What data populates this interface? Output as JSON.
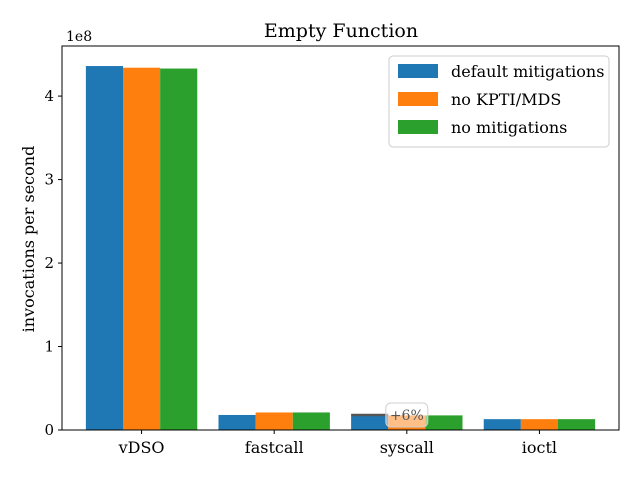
{
  "chart_data": {
    "type": "bar",
    "title": "Empty Function",
    "xlabel": "",
    "ylabel": "invocations per second",
    "y_offset_label": "1e8",
    "y_scale": 100000000,
    "ylim": [
      0,
      460000000
    ],
    "yticks": [
      0,
      100000000,
      200000000,
      300000000,
      400000000
    ],
    "ytick_labels": [
      "0",
      "1",
      "2",
      "3",
      "4"
    ],
    "categories": [
      "vDSO",
      "fastcall",
      "syscall",
      "ioctl"
    ],
    "series": [
      {
        "name": "default mitigations",
        "color": "#1f77b4",
        "values": [
          436000000,
          18000000,
          17000000,
          13000000
        ]
      },
      {
        "name": "no KPTI/MDS",
        "color": "#ff7f0e",
        "values": [
          434000000,
          21000000,
          17500000,
          13000000
        ]
      },
      {
        "name": "no mitigations",
        "color": "#2ca02c",
        "values": [
          433000000,
          21000000,
          17500000,
          13000000
        ]
      }
    ],
    "annotation": {
      "text": "+6%",
      "category": "syscall",
      "baseline_value": 18000000
    },
    "legend_position": "upper right",
    "grid": false
  }
}
